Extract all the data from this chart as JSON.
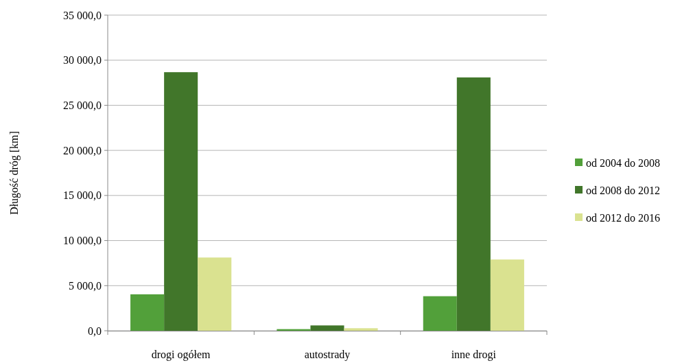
{
  "chart_data": {
    "type": "bar",
    "ylabel": "Długość dróg [km]",
    "categories": [
      "drogi ogółem",
      "autostrady",
      "inne drogi"
    ],
    "series": [
      {
        "name": "od 2004 do 2008",
        "color": "#52a03a",
        "values": [
          4040,
          180,
          3830
        ]
      },
      {
        "name": "od 2008 do 2012",
        "color": "#41762a",
        "values": [
          28670,
          590,
          28090
        ]
      },
      {
        "name": "od 2012 do 2016",
        "color": "#dae290",
        "values": [
          8120,
          280,
          7900
        ]
      }
    ],
    "ylim": [
      0,
      35000
    ],
    "yticks": [
      {
        "value": 0,
        "label": "0,0"
      },
      {
        "value": 5000,
        "label": "5 000,0"
      },
      {
        "value": 10000,
        "label": "10 000,0"
      },
      {
        "value": 15000,
        "label": "15 000,0"
      },
      {
        "value": 20000,
        "label": "20 000,0"
      },
      {
        "value": 25000,
        "label": "25 000,0"
      },
      {
        "value": 30000,
        "label": "30 000,0"
      },
      {
        "value": 35000,
        "label": "35 000,0"
      }
    ],
    "grid": "y",
    "legend": "right"
  }
}
